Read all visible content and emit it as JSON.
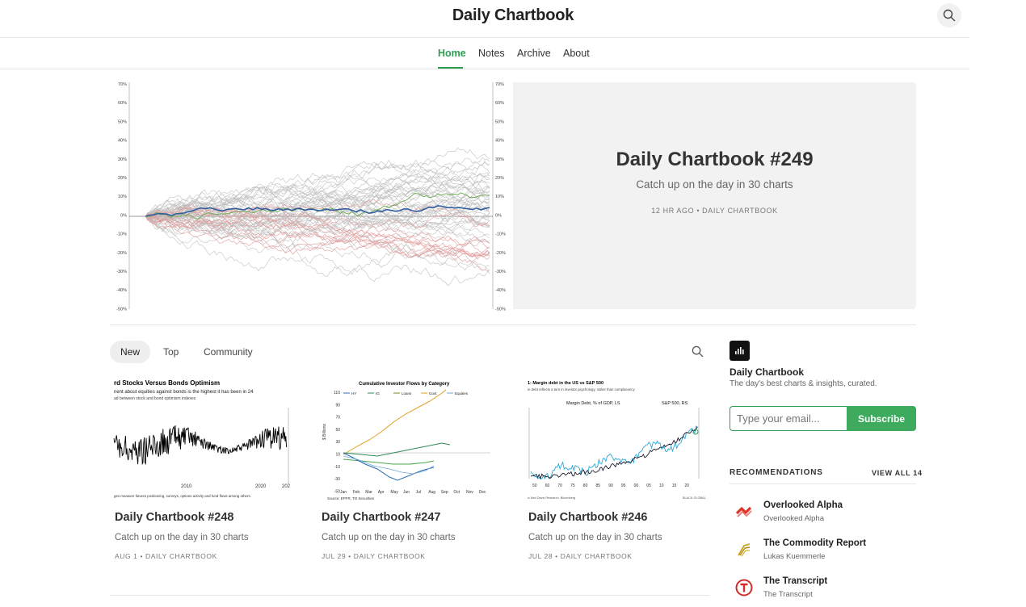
{
  "header": {
    "title": "Daily Chartbook"
  },
  "nav": {
    "items": [
      "Home",
      "Notes",
      "Archive",
      "About"
    ],
    "active": "Home"
  },
  "hero": {
    "title": "Daily Chartbook #249",
    "subtitle": "Catch up on the day in 30 charts",
    "meta": "12 HR AGO • DAILY CHARTBOOK",
    "axis_labels": [
      "70%",
      "60%",
      "50%",
      "40%",
      "30%",
      "20%",
      "10%",
      "0%",
      "-10%",
      "-20%",
      "-30%",
      "-40%",
      "-50%"
    ]
  },
  "feed": {
    "tabs": [
      "New",
      "Top",
      "Community"
    ],
    "active_tab": "New",
    "posts": [
      {
        "title": "Daily Chartbook #248",
        "subtitle": "Catch up on the day in 30 charts",
        "meta": "AUG 1 • DAILY CHARTBOOK",
        "thumb_title": "rd Stocks Versus Bonds Optimism",
        "thumb_sub1": "nent about equities against bonds is the highest it has been in 24",
        "thumb_sub2": "ad between stock and bond optimism indexes",
        "thumb_x": [
          "2010",
          "2020",
          "202"
        ],
        "thumb_footer": "ges measure futures positioning, surveys, options activity and fund flows among others."
      },
      {
        "title": "Daily Chartbook #247",
        "subtitle": "Catch up on the day in 30 charts",
        "meta": "JUL 29 • DAILY CHARTBOOK",
        "thumb_title": "Cumulative Investor Flows by Category",
        "thumb_legend": [
          "HY",
          "IG",
          "Loans",
          "Govt",
          "Equities"
        ],
        "thumb_y": [
          "110",
          "90",
          "70",
          "50",
          "30",
          "10",
          "-10",
          "-30",
          "-50"
        ],
        "thumb_ylabel": "$ Billions",
        "thumb_x": [
          "Jan",
          "Feb",
          "Mar",
          "Apr",
          "May",
          "Jun",
          "Jul",
          "Aug",
          "Sep",
          "Oct",
          "Nov",
          "Dec"
        ],
        "thumb_footer": "Source: EPFR, TD Securities"
      },
      {
        "title": "Daily Chartbook #246",
        "subtitle": "Catch up on the day in 30 charts",
        "meta": "JUL 28 • DAILY CHARTBOOK",
        "thumb_title": "1: Margin debt in the US vs S&P 500",
        "thumb_sub": "in debt reflects a turn in investor psychology, rather than complacency",
        "thumb_series": [
          "Margin Debt, % of GDP, LS",
          "S&P 500, RS"
        ],
        "thumb_x": [
          "50",
          "60",
          "70",
          "75",
          "80",
          "85",
          "90",
          "95",
          "00",
          "05",
          "10",
          "15",
          "20"
        ],
        "thumb_footer": "ic Ned Davis Research, Bloomberg",
        "thumb_brand": "BLACK GLOBAL"
      }
    ]
  },
  "sidebar": {
    "pub_name": "Daily Chartbook",
    "pub_desc": "The day's best charts & insights, curated.",
    "email_placeholder": "Type your email...",
    "subscribe_label": "Subscribe",
    "recommendations_heading": "RECOMMENDATIONS",
    "view_all_label": "VIEW ALL 14",
    "recommendations": [
      {
        "name": "Overlooked Alpha",
        "author": "Overlooked Alpha",
        "icon": "overlooked-alpha-logo",
        "color": "#e0342b"
      },
      {
        "name": "The Commodity Report",
        "author": "Lukas Kuemmerle",
        "icon": "commodity-report-logo",
        "color": "#c9a227"
      },
      {
        "name": "The Transcript",
        "author": "The Transcript",
        "icon": "transcript-logo",
        "color": "#d42b2b"
      }
    ]
  },
  "colors": {
    "accent": "#2e9d52",
    "subscribe": "#3daa5e"
  }
}
